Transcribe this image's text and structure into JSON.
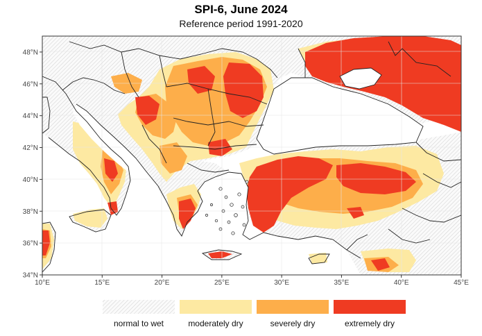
{
  "title": "SPI-6, June 2024",
  "subtitle": "Reference period 1991-2020",
  "map": {
    "extent": {
      "lon_min": 10,
      "lon_max": 45,
      "lat_min": 34,
      "lat_max": 49
    },
    "x_ticks": [
      {
        "value": 10,
        "label": "10°E"
      },
      {
        "value": 15,
        "label": "15°E"
      },
      {
        "value": 20,
        "label": "20°E"
      },
      {
        "value": 25,
        "label": "25°E"
      },
      {
        "value": 30,
        "label": "30°E"
      },
      {
        "value": 35,
        "label": "35°E"
      },
      {
        "value": 40,
        "label": "40°E"
      },
      {
        "value": 45,
        "label": "45°E"
      }
    ],
    "y_ticks": [
      {
        "value": 34,
        "label": "34°N"
      },
      {
        "value": 36,
        "label": "36°N"
      },
      {
        "value": 38,
        "label": "38°N"
      },
      {
        "value": 40,
        "label": "40°N"
      },
      {
        "value": 42,
        "label": "42°N"
      },
      {
        "value": 44,
        "label": "44°N"
      },
      {
        "value": 46,
        "label": "46°N"
      },
      {
        "value": 48,
        "label": "48°N"
      }
    ],
    "colors": {
      "normal_to_wet": "#f2f2f2",
      "moderately_dry": "#fde9a2",
      "severely_dry": "#fdae4a",
      "extremely_dry": "#ef3b22",
      "border": "#222222",
      "grid": "#e6e6e6"
    }
  },
  "legend": {
    "items": [
      {
        "label": "normal to wet",
        "category": "normal_to_wet"
      },
      {
        "label": "moderately dry",
        "category": "moderately_dry"
      },
      {
        "label": "severely dry",
        "category": "severely_dry"
      },
      {
        "label": "extremely dry",
        "category": "extremely_dry"
      }
    ]
  }
}
